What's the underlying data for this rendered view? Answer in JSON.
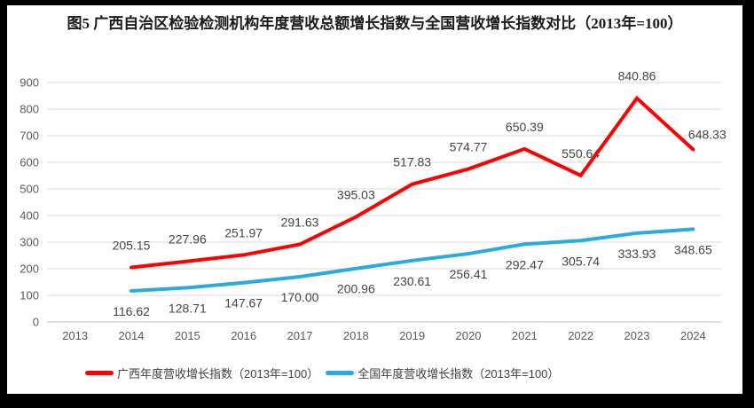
{
  "window": {
    "frame_color": "#000000",
    "panel_color": "#ffffff"
  },
  "chart_data": {
    "type": "line",
    "title": "图5 广西自治区检验检测机构年度营收总额增长指数与全国营收增长指数对比（2013年=100）",
    "categories": [
      "2013",
      "2014",
      "2015",
      "2016",
      "2017",
      "2018",
      "2019",
      "2020",
      "2021",
      "2022",
      "2023",
      "2024"
    ],
    "series": [
      {
        "name": "广西年度营收增长指数（2013年=100）",
        "color": "#FF0000",
        "label_position": "above",
        "values": [
          null,
          205.15,
          227.96,
          251.97,
          291.63,
          395.03,
          517.83,
          574.77,
          650.39,
          550.64,
          840.86,
          648.33
        ]
      },
      {
        "name": "全国年度营收增长指数（2013年=100）",
        "color": "#29ABE2",
        "label_position": "below",
        "values": [
          null,
          116.62,
          128.71,
          147.67,
          170.0,
          200.96,
          230.61,
          256.41,
          292.47,
          305.74,
          333.93,
          348.65
        ]
      }
    ],
    "y_axis": {
      "min": 0,
      "max": 900,
      "step": 100,
      "ticks": [
        0,
        100,
        200,
        300,
        400,
        500,
        600,
        700,
        800,
        900
      ]
    },
    "x_axis": {
      "label": ""
    },
    "grid": true,
    "legend_position": "bottom",
    "label_decimals": 2,
    "styles": {
      "gridline_color": "#D9D9D9",
      "axis_line_color": "#BFBFBF",
      "axis_text_color": "#595959",
      "data_label_color": "#444444",
      "line_width": 4
    }
  }
}
